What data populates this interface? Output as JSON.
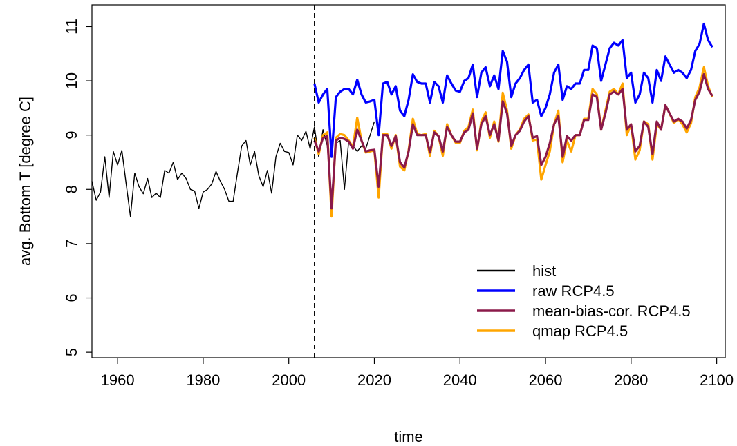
{
  "chart_data": {
    "type": "line",
    "xlabel": "time",
    "ylabel": "avg. Bottom T [degree C]",
    "xlim": [
      1954,
      2102
    ],
    "ylim": [
      4.9,
      11.4
    ],
    "x_ticks": [
      1960,
      1980,
      2000,
      2020,
      2040,
      2060,
      2080,
      2100
    ],
    "y_ticks": [
      5,
      6,
      7,
      8,
      9,
      10,
      11
    ],
    "vline_x": 2006,
    "legend_position": "bottom-right",
    "series": [
      {
        "name": "hist",
        "color": "#000000",
        "x": [
          1954,
          1955,
          1956,
          1957,
          1958,
          1959,
          1960,
          1961,
          1962,
          1963,
          1964,
          1965,
          1966,
          1967,
          1968,
          1969,
          1970,
          1971,
          1972,
          1973,
          1974,
          1975,
          1976,
          1977,
          1978,
          1979,
          1980,
          1981,
          1982,
          1983,
          1984,
          1985,
          1986,
          1987,
          1988,
          1989,
          1990,
          1991,
          1992,
          1993,
          1994,
          1995,
          1996,
          1997,
          1998,
          1999,
          2000,
          2001,
          2002,
          2003,
          2004,
          2005,
          2006,
          2007,
          2008,
          2009,
          2010,
          2011,
          2012,
          2013,
          2014,
          2015,
          2016,
          2017,
          2018,
          2019,
          2020
        ],
        "values": [
          8.15,
          7.8,
          7.95,
          8.6,
          7.85,
          8.7,
          8.45,
          8.72,
          8.1,
          7.5,
          8.3,
          8.05,
          7.92,
          8.2,
          7.85,
          7.93,
          7.85,
          8.35,
          8.3,
          8.5,
          8.18,
          8.3,
          8.2,
          8.0,
          7.97,
          7.65,
          7.95,
          8.0,
          8.1,
          8.33,
          8.15,
          8.0,
          7.78,
          7.78,
          8.3,
          8.8,
          8.9,
          8.45,
          8.7,
          8.25,
          8.05,
          8.35,
          7.93,
          8.6,
          8.85,
          8.7,
          8.68,
          8.45,
          9.0,
          8.9,
          9.07,
          8.75,
          9.15,
          8.6,
          9.1,
          8.8,
          7.85,
          8.85,
          8.9,
          8.0,
          8.9,
          8.8,
          8.7,
          8.8,
          8.75,
          9.0,
          9.25
        ]
      },
      {
        "name": "raw RCP4.5",
        "color": "#0000ff",
        "x": [
          2006,
          2007,
          2008,
          2009,
          2010,
          2011,
          2012,
          2013,
          2014,
          2015,
          2016,
          2017,
          2018,
          2019,
          2020,
          2021,
          2022,
          2023,
          2024,
          2025,
          2026,
          2027,
          2028,
          2029,
          2030,
          2031,
          2032,
          2033,
          2034,
          2035,
          2036,
          2037,
          2038,
          2039,
          2040,
          2041,
          2042,
          2043,
          2044,
          2045,
          2046,
          2047,
          2048,
          2049,
          2050,
          2051,
          2052,
          2053,
          2054,
          2055,
          2056,
          2057,
          2058,
          2059,
          2060,
          2061,
          2062,
          2063,
          2064,
          2065,
          2066,
          2067,
          2068,
          2069,
          2070,
          2071,
          2072,
          2073,
          2074,
          2075,
          2076,
          2077,
          2078,
          2079,
          2080,
          2081,
          2082,
          2083,
          2084,
          2085,
          2086,
          2087,
          2088,
          2089,
          2090,
          2091,
          2092,
          2093,
          2094,
          2095,
          2096,
          2097,
          2098,
          2099
        ],
        "values": [
          9.95,
          9.6,
          9.75,
          9.85,
          8.6,
          9.7,
          9.8,
          9.85,
          9.85,
          9.75,
          10.02,
          9.75,
          9.6,
          9.62,
          9.65,
          9.0,
          9.95,
          9.98,
          9.75,
          9.9,
          9.45,
          9.35,
          9.65,
          10.12,
          9.98,
          9.95,
          9.95,
          9.6,
          9.98,
          9.9,
          9.6,
          10.1,
          9.95,
          9.82,
          9.8,
          10.0,
          10.05,
          10.3,
          9.7,
          10.15,
          10.25,
          9.9,
          10.1,
          9.85,
          10.55,
          10.35,
          9.7,
          9.95,
          10.05,
          10.2,
          10.3,
          9.6,
          9.65,
          9.35,
          9.5,
          9.75,
          10.15,
          10.3,
          9.65,
          9.9,
          9.85,
          9.95,
          9.95,
          10.2,
          10.2,
          10.65,
          10.6,
          10.0,
          10.3,
          10.6,
          10.7,
          10.65,
          10.75,
          10.05,
          10.15,
          9.6,
          9.75,
          10.15,
          10.05,
          9.6,
          10.2,
          10.0,
          10.45,
          10.3,
          10.15,
          10.2,
          10.15,
          10.05,
          10.2,
          10.55,
          10.68,
          11.05,
          10.75,
          10.62
        ]
      },
      {
        "name": "mean-bias-cor. RCP4.5",
        "color": "#8b1a4a",
        "x": [
          2006,
          2007,
          2008,
          2009,
          2010,
          2011,
          2012,
          2013,
          2014,
          2015,
          2016,
          2017,
          2018,
          2019,
          2020,
          2021,
          2022,
          2023,
          2024,
          2025,
          2026,
          2027,
          2028,
          2029,
          2030,
          2031,
          2032,
          2033,
          2034,
          2035,
          2036,
          2037,
          2038,
          2039,
          2040,
          2041,
          2042,
          2043,
          2044,
          2045,
          2046,
          2047,
          2048,
          2049,
          2050,
          2051,
          2052,
          2053,
          2054,
          2055,
          2056,
          2057,
          2058,
          2059,
          2060,
          2061,
          2062,
          2063,
          2064,
          2065,
          2066,
          2067,
          2068,
          2069,
          2070,
          2071,
          2072,
          2073,
          2074,
          2075,
          2076,
          2077,
          2078,
          2079,
          2080,
          2081,
          2082,
          2083,
          2084,
          2085,
          2086,
          2087,
          2088,
          2089,
          2090,
          2091,
          2092,
          2093,
          2094,
          2095,
          2096,
          2097,
          2098,
          2099
        ],
        "values": [
          8.9,
          8.7,
          8.95,
          8.98,
          7.65,
          8.9,
          8.95,
          8.93,
          8.88,
          8.75,
          9.1,
          8.9,
          8.7,
          8.72,
          8.73,
          8.05,
          9.0,
          9.0,
          8.8,
          8.98,
          8.5,
          8.4,
          8.7,
          9.2,
          9.0,
          9.0,
          9.0,
          8.68,
          9.05,
          8.98,
          8.7,
          9.15,
          9.0,
          8.88,
          8.88,
          9.05,
          9.1,
          9.4,
          8.75,
          9.2,
          9.35,
          9.0,
          9.2,
          8.9,
          9.62,
          9.4,
          8.8,
          9.0,
          9.08,
          9.25,
          9.35,
          8.95,
          8.98,
          8.45,
          8.6,
          8.85,
          9.2,
          9.35,
          8.6,
          8.98,
          8.9,
          9.0,
          9.0,
          9.28,
          9.28,
          9.75,
          9.7,
          9.1,
          9.4,
          9.75,
          9.8,
          9.75,
          9.85,
          9.1,
          9.2,
          8.7,
          8.8,
          9.25,
          9.15,
          8.65,
          9.25,
          9.1,
          9.55,
          9.4,
          9.25,
          9.3,
          9.25,
          9.12,
          9.28,
          9.65,
          9.8,
          10.12,
          9.85,
          9.72
        ]
      },
      {
        "name": "qmap RCP4.5",
        "color": "#ffa500",
        "x": [
          2006,
          2007,
          2008,
          2009,
          2010,
          2011,
          2012,
          2013,
          2014,
          2015,
          2016,
          2017,
          2018,
          2019,
          2020,
          2021,
          2022,
          2023,
          2024,
          2025,
          2026,
          2027,
          2028,
          2029,
          2030,
          2031,
          2032,
          2033,
          2034,
          2035,
          2036,
          2037,
          2038,
          2039,
          2040,
          2041,
          2042,
          2043,
          2044,
          2045,
          2046,
          2047,
          2048,
          2049,
          2050,
          2051,
          2052,
          2053,
          2054,
          2055,
          2056,
          2057,
          2058,
          2059,
          2060,
          2061,
          2062,
          2063,
          2064,
          2065,
          2066,
          2067,
          2068,
          2069,
          2070,
          2071,
          2072,
          2073,
          2074,
          2075,
          2076,
          2077,
          2078,
          2079,
          2080,
          2081,
          2082,
          2083,
          2084,
          2085,
          2086,
          2087,
          2088,
          2089,
          2090,
          2091,
          2092,
          2093,
          2094,
          2095,
          2096,
          2097,
          2098,
          2099
        ],
        "values": [
          8.95,
          8.65,
          9.0,
          9.05,
          7.5,
          8.95,
          9.02,
          9.0,
          8.9,
          8.78,
          9.32,
          8.9,
          8.68,
          8.7,
          8.72,
          7.85,
          9.02,
          9.02,
          8.75,
          9.0,
          8.42,
          8.35,
          8.72,
          9.3,
          9.02,
          9.0,
          9.02,
          8.62,
          9.08,
          8.98,
          8.62,
          9.2,
          9.0,
          8.86,
          8.86,
          9.08,
          9.15,
          9.47,
          8.72,
          9.25,
          9.42,
          8.95,
          9.25,
          8.88,
          9.78,
          9.45,
          8.75,
          9.0,
          9.1,
          9.3,
          9.38,
          8.9,
          8.92,
          8.18,
          8.45,
          8.7,
          9.2,
          9.45,
          8.5,
          8.9,
          8.7,
          9.0,
          9.0,
          9.3,
          9.3,
          9.85,
          9.75,
          9.1,
          9.45,
          9.8,
          9.85,
          9.75,
          9.95,
          9.0,
          9.2,
          8.55,
          8.72,
          9.25,
          9.2,
          8.55,
          9.2,
          9.1,
          9.55,
          9.4,
          9.22,
          9.3,
          9.2,
          9.05,
          9.22,
          9.7,
          9.88,
          10.25,
          9.9,
          9.7
        ]
      }
    ]
  }
}
